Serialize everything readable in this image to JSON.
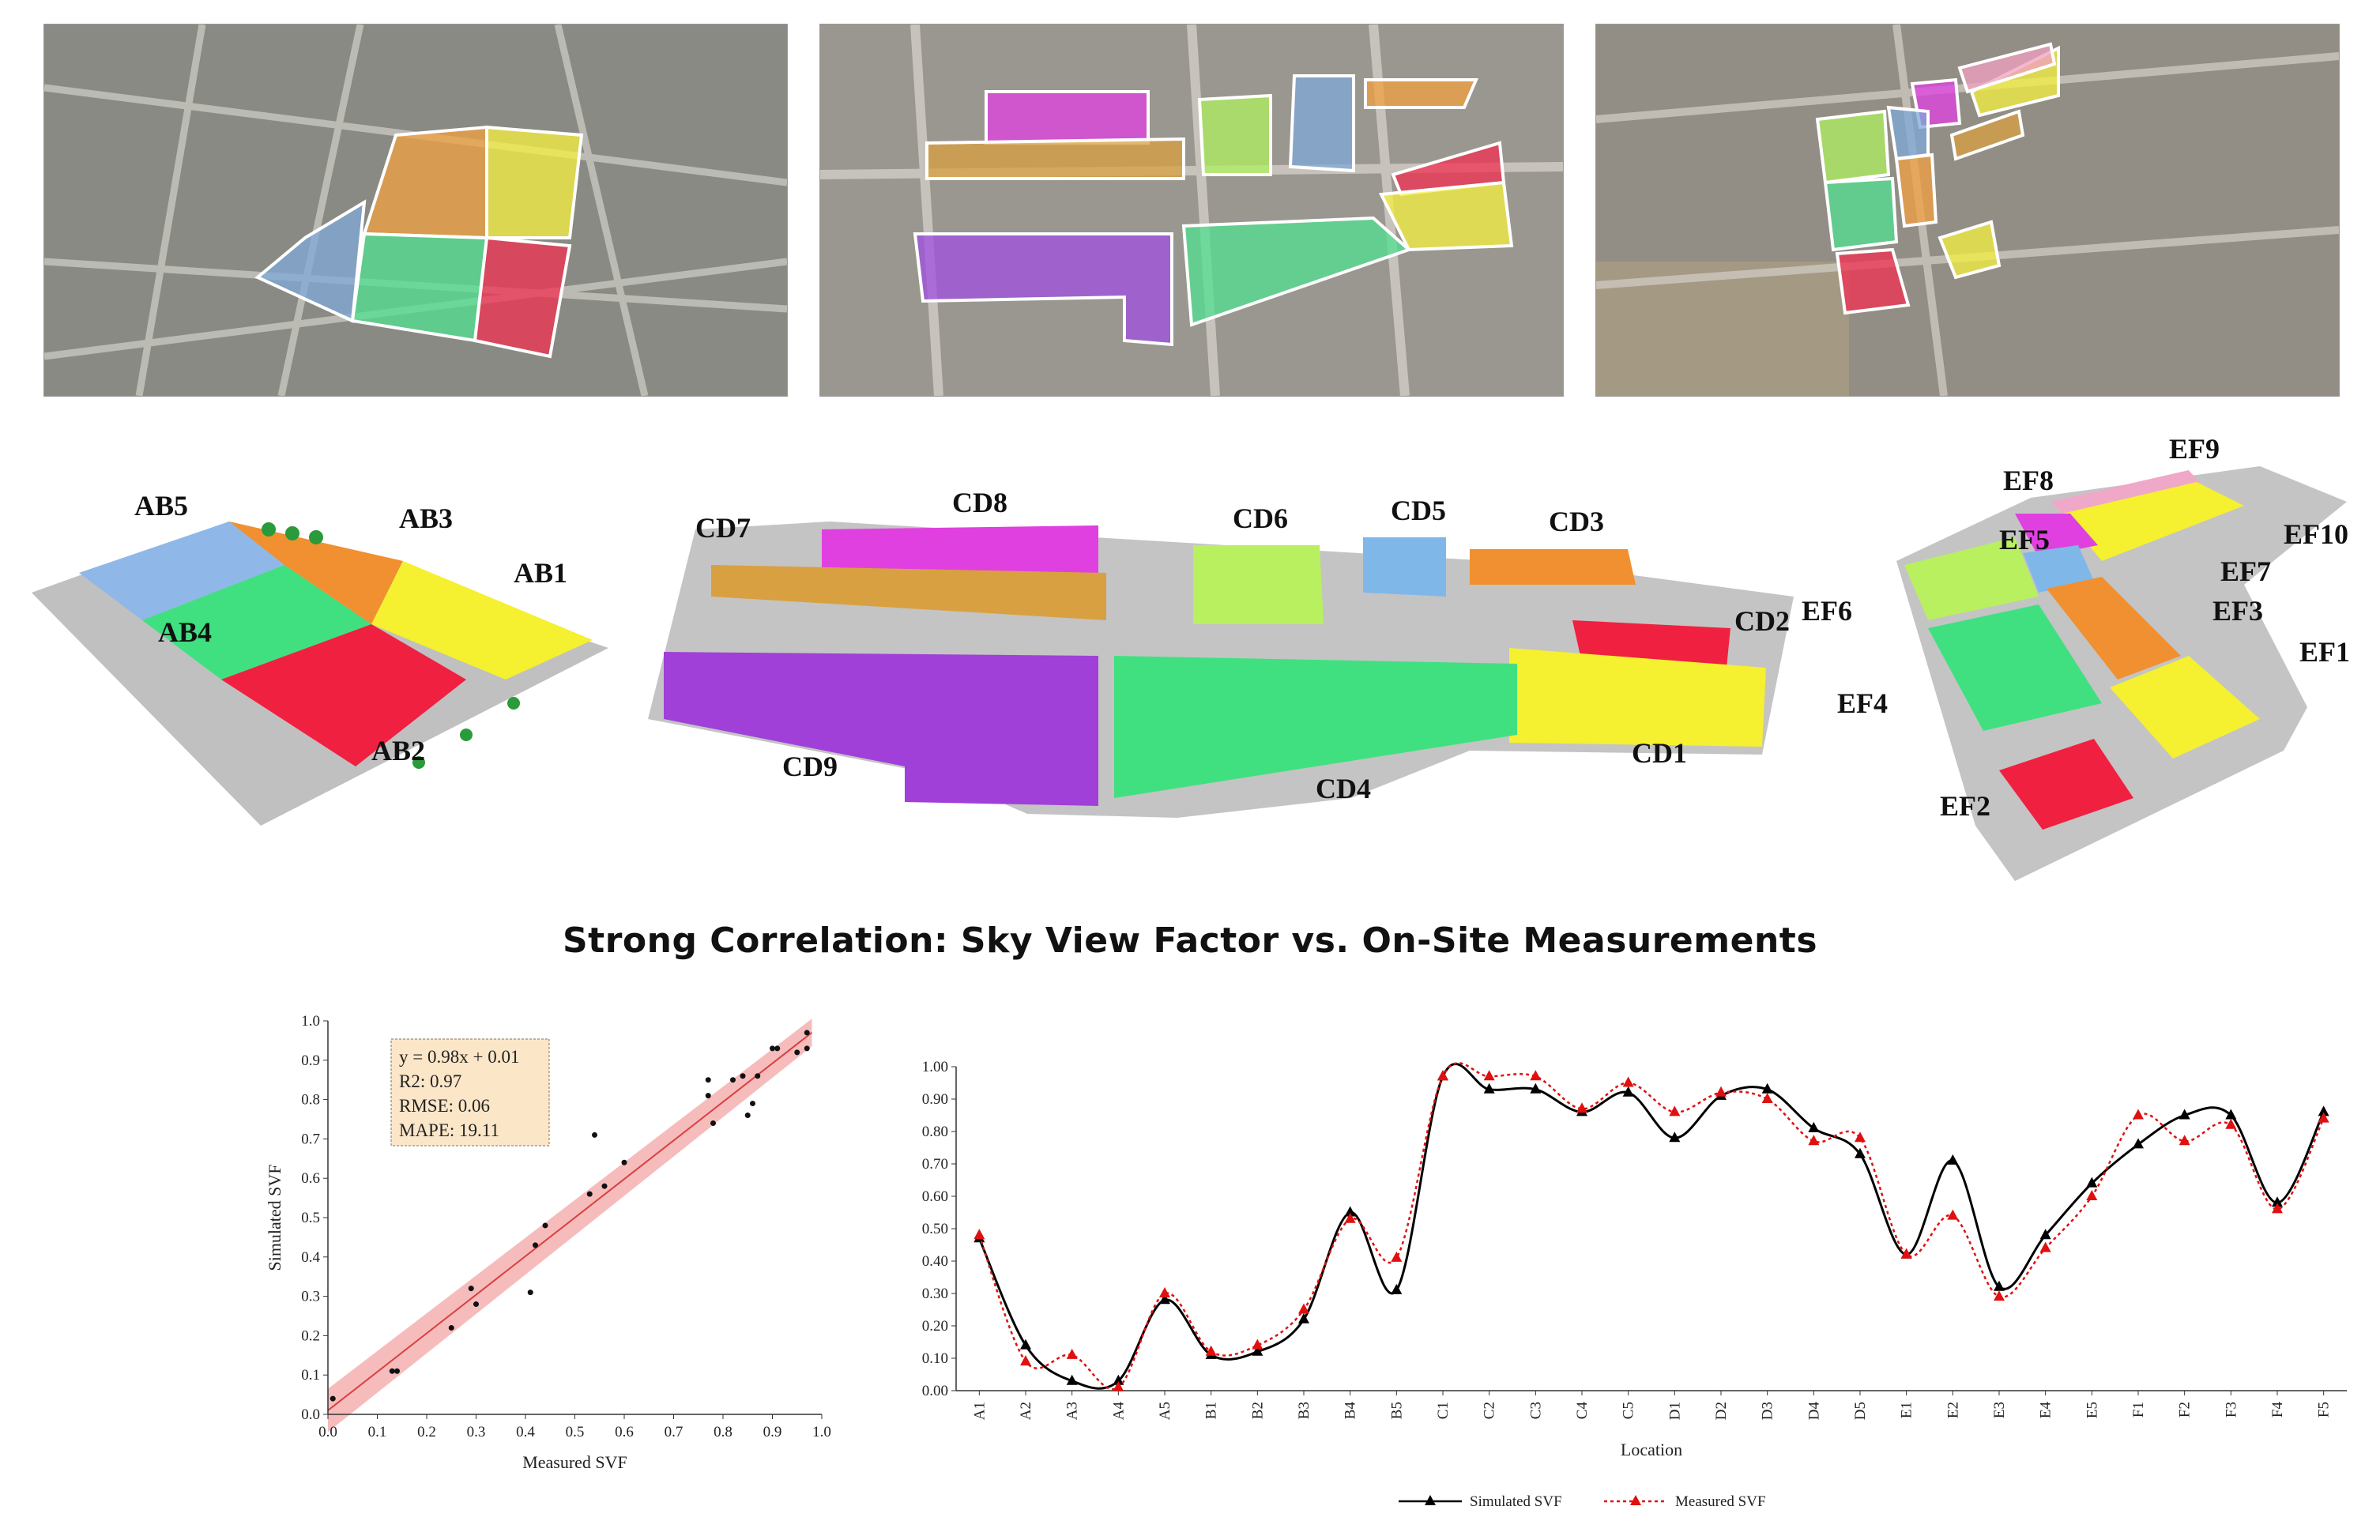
{
  "aerials": [
    {
      "name": "aerial-ab",
      "zones": [
        {
          "fill": "#f0a040"
        },
        {
          "fill": "#f5f040"
        },
        {
          "fill": "#7fa8d8"
        },
        {
          "fill": "#50e090"
        },
        {
          "fill": "#f03050"
        }
      ]
    },
    {
      "name": "aerial-cd",
      "zones": [
        {
          "fill": "#e040e0"
        },
        {
          "fill": "#d8a040"
        },
        {
          "fill": "#b0f060"
        },
        {
          "fill": "#7fa8d8"
        },
        {
          "fill": "#f0a040"
        },
        {
          "fill": "#f03050"
        },
        {
          "fill": "#f5f040"
        },
        {
          "fill": "#a050e0"
        },
        {
          "fill": "#50e090"
        }
      ]
    },
    {
      "name": "aerial-ef",
      "zones": [
        {
          "fill": "#f5f040"
        },
        {
          "fill": "#f0a0c0"
        },
        {
          "fill": "#e040e0"
        },
        {
          "fill": "#7fa8d8"
        },
        {
          "fill": "#b0f060"
        },
        {
          "fill": "#f0a040"
        },
        {
          "fill": "#50e090"
        },
        {
          "fill": "#f5f040"
        },
        {
          "fill": "#f03050"
        },
        {
          "fill": "#d8a040"
        }
      ]
    }
  ],
  "models": {
    "ab": {
      "labels": [
        "AB5",
        "AB3",
        "AB1",
        "AB4",
        "AB2"
      ]
    },
    "cd": {
      "labels": [
        "CD7",
        "CD8",
        "CD6",
        "CD5",
        "CD3",
        "CD2",
        "CD9",
        "CD4",
        "CD1"
      ]
    },
    "ef": {
      "labels": [
        "EF8",
        "EF9",
        "EF10",
        "EF5",
        "EF7",
        "EF6",
        "EF3",
        "EF1",
        "EF4",
        "EF2"
      ]
    }
  },
  "title": "Strong Correlation: Sky View Factor vs. On-Site Measurements",
  "chart_data": [
    {
      "type": "scatter",
      "xlabel": "Measured SVF",
      "ylabel": "Simulated SVF",
      "xlim": [
        0.0,
        1.0
      ],
      "ylim": [
        0.0,
        1.0
      ],
      "ticks": [
        "0.0",
        "0.1",
        "0.2",
        "0.3",
        "0.4",
        "0.5",
        "0.6",
        "0.7",
        "0.8",
        "0.9",
        "1.0"
      ],
      "annotation": [
        "y = 0.98x + 0.01",
        "R2: 0.97",
        "RMSE: 0.06",
        "MAPE: 19.11"
      ],
      "fit": {
        "slope": 0.98,
        "intercept": 0.01
      },
      "colors": {
        "fit_line": "#d94040",
        "band": "#f2a0a0",
        "points": "#111111"
      },
      "points": [
        [
          0.01,
          0.04
        ],
        [
          0.13,
          0.11
        ],
        [
          0.14,
          0.11
        ],
        [
          0.25,
          0.22
        ],
        [
          0.29,
          0.32
        ],
        [
          0.3,
          0.28
        ],
        [
          0.41,
          0.31
        ],
        [
          0.42,
          0.43
        ],
        [
          0.44,
          0.48
        ],
        [
          0.53,
          0.56
        ],
        [
          0.54,
          0.71
        ],
        [
          0.56,
          0.58
        ],
        [
          0.6,
          0.64
        ],
        [
          0.77,
          0.81
        ],
        [
          0.77,
          0.85
        ],
        [
          0.78,
          0.74
        ],
        [
          0.82,
          0.85
        ],
        [
          0.84,
          0.86
        ],
        [
          0.85,
          0.76
        ],
        [
          0.86,
          0.79
        ],
        [
          0.87,
          0.86
        ],
        [
          0.9,
          0.93
        ],
        [
          0.91,
          0.93
        ],
        [
          0.95,
          0.92
        ],
        [
          0.97,
          0.93
        ],
        [
          0.97,
          0.97
        ]
      ]
    },
    {
      "type": "line",
      "xlabel": "Location",
      "ylabel": "",
      "ylim": [
        0.0,
        1.0
      ],
      "yticks": [
        "0.00",
        "0.10",
        "0.20",
        "0.30",
        "0.40",
        "0.50",
        "0.60",
        "0.70",
        "0.80",
        "0.90",
        "1.00"
      ],
      "categories": [
        "A1",
        "A2",
        "A3",
        "A4",
        "A5",
        "B1",
        "B2",
        "B3",
        "B4",
        "B5",
        "C1",
        "C2",
        "C3",
        "C4",
        "C5",
        "D1",
        "D2",
        "D3",
        "D4",
        "D5",
        "E1",
        "E2",
        "E3",
        "E4",
        "E5",
        "F1",
        "F2",
        "F3",
        "F4",
        "F5"
      ],
      "series": [
        {
          "name": "Simulated SVF",
          "color": "#000000",
          "values": [
            0.47,
            0.14,
            0.03,
            0.03,
            0.28,
            0.11,
            0.12,
            0.22,
            0.55,
            0.31,
            0.97,
            0.93,
            0.93,
            0.86,
            0.92,
            0.78,
            0.91,
            0.93,
            0.81,
            0.73,
            0.42,
            0.71,
            0.32,
            0.48,
            0.64,
            0.76,
            0.85,
            0.85,
            0.58,
            0.86
          ]
        },
        {
          "name": "Measured SVF",
          "color": "#e01010",
          "values": [
            0.48,
            0.09,
            0.11,
            0.01,
            0.3,
            0.12,
            0.14,
            0.25,
            0.53,
            0.41,
            0.97,
            0.97,
            0.97,
            0.87,
            0.95,
            0.86,
            0.92,
            0.9,
            0.77,
            0.78,
            0.42,
            0.54,
            0.29,
            0.44,
            0.6,
            0.85,
            0.77,
            0.82,
            0.56,
            0.84
          ]
        }
      ]
    }
  ]
}
